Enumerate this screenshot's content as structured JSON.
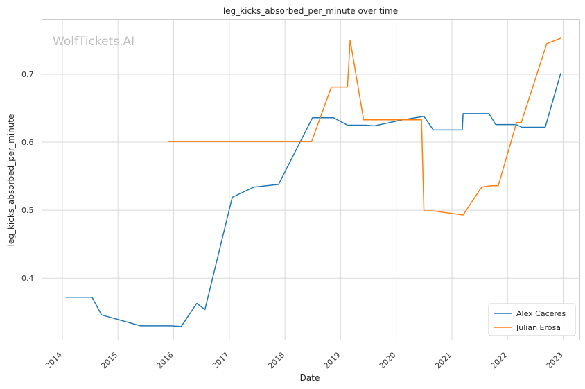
{
  "chart_data": {
    "type": "line",
    "title": "leg_kicks_absorbed_per_minute over time",
    "xlabel": "Date",
    "ylabel": "leg_kicks_absorbed_per_minute",
    "watermark": "WolfTickets.AI",
    "x_ticks": [
      "2014",
      "2015",
      "2016",
      "2017",
      "2018",
      "2019",
      "2020",
      "2021",
      "2022",
      "2023"
    ],
    "y_ticks": [
      "0.4",
      "0.5",
      "0.6",
      "0.7"
    ],
    "xlim": [
      "2013-08-20",
      "2023-04-20"
    ],
    "ylim": [
      0.309,
      0.78
    ],
    "grid": true,
    "legend_position": "lower-right",
    "series": [
      {
        "name": "Alex Caceres",
        "color": "#1f77b4",
        "points": [
          [
            "2014-01-25",
            0.372
          ],
          [
            "2014-07-15",
            0.372
          ],
          [
            "2014-09-15",
            0.346
          ],
          [
            "2015-05-30",
            0.33
          ],
          [
            "2015-12-15",
            0.33
          ],
          [
            "2016-02-20",
            0.329
          ],
          [
            "2016-06-01",
            0.363
          ],
          [
            "2016-07-25",
            0.354
          ],
          [
            "2017-01-20",
            0.519
          ],
          [
            "2017-06-10",
            0.534
          ],
          [
            "2017-11-20",
            0.538
          ],
          [
            "2018-07-01",
            0.636
          ],
          [
            "2018-11-15",
            0.636
          ],
          [
            "2019-02-15",
            0.625
          ],
          [
            "2019-06-15",
            0.625
          ],
          [
            "2019-08-10",
            0.624
          ],
          [
            "2020-02-15",
            0.633
          ],
          [
            "2020-07-01",
            0.638
          ],
          [
            "2020-09-01",
            0.618
          ],
          [
            "2021-03-10",
            0.618
          ],
          [
            "2021-03-15",
            0.642
          ],
          [
            "2021-09-01",
            0.642
          ],
          [
            "2021-10-15",
            0.626
          ],
          [
            "2022-02-25",
            0.626
          ],
          [
            "2022-04-05",
            0.622
          ],
          [
            "2022-09-05",
            0.622
          ],
          [
            "2022-12-15",
            0.701
          ]
        ]
      },
      {
        "name": "Julian Erosa",
        "color": "#ff7f0e",
        "points": [
          [
            "2015-12-01",
            0.601
          ],
          [
            "2018-06-25",
            0.601
          ],
          [
            "2018-11-01",
            0.681
          ],
          [
            "2019-02-15",
            0.681
          ],
          [
            "2019-03-05",
            0.75
          ],
          [
            "2019-06-01",
            0.633
          ],
          [
            "2020-06-15",
            0.633
          ],
          [
            "2020-07-01",
            0.499
          ],
          [
            "2020-09-01",
            0.499
          ],
          [
            "2021-03-15",
            0.493
          ],
          [
            "2021-07-15",
            0.534
          ],
          [
            "2021-09-15",
            0.536
          ],
          [
            "2021-11-01",
            0.536
          ],
          [
            "2022-03-01",
            0.629
          ],
          [
            "2022-04-01",
            0.629
          ],
          [
            "2022-09-15",
            0.745
          ],
          [
            "2022-12-15",
            0.753
          ]
        ]
      }
    ]
  }
}
